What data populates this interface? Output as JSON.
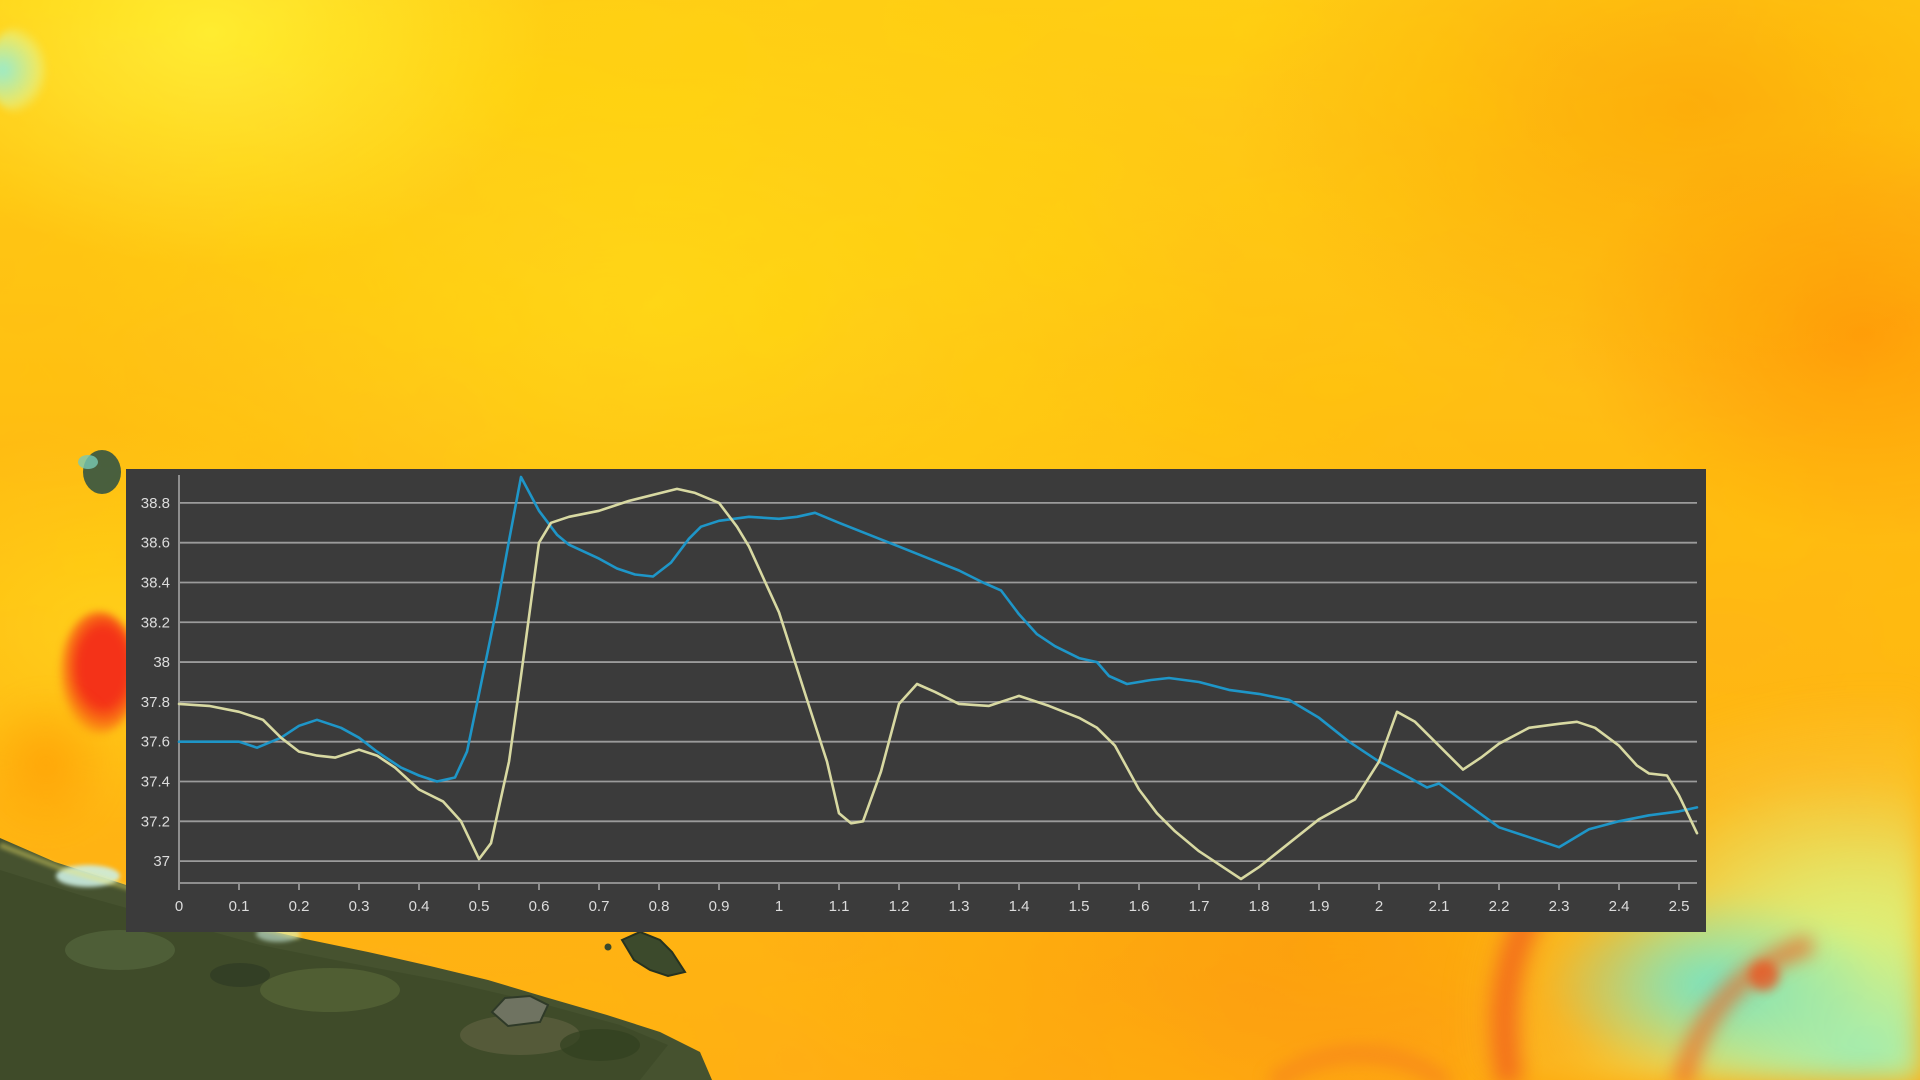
{
  "panel": {
    "background": "#3B3B3B",
    "gridline_color": "#9B9B9B",
    "axis_color": "#8E8E8E",
    "tick_label_color": "#DCDCDC"
  },
  "background_colors": {
    "warm_base": "#FFB71C",
    "warm_light": "#FFE14A",
    "warm_deep": "#FA8700",
    "hot_red": "#F43218",
    "cool_aqua": "#70E2C8",
    "cool_green": "#E5F576",
    "land_green": "#46522F",
    "coast_cyan": "#CDEFE2"
  },
  "chart_data": {
    "type": "line",
    "title": "",
    "xlabel": "",
    "ylabel": "",
    "grid": true,
    "legend_position": "none",
    "xlim": [
      0,
      2.53
    ],
    "ylim": [
      36.89,
      38.94
    ],
    "x_ticks": [
      0,
      0.1,
      0.2,
      0.3,
      0.4,
      0.5,
      0.6,
      0.7,
      0.8,
      0.9,
      1,
      1.1,
      1.2,
      1.3,
      1.4,
      1.5,
      1.6,
      1.7,
      1.8,
      1.9,
      2,
      2.1,
      2.2,
      2.3,
      2.4,
      2.5
    ],
    "x_tick_labels": [
      "0",
      "0.1",
      "0.2",
      "0.3",
      "0.4",
      "0.5",
      "0.6",
      "0.7",
      "0.8",
      "0.9",
      "1",
      "1.1",
      "1.2",
      "1.3",
      "1.4",
      "1.5",
      "1.6",
      "1.7",
      "1.8",
      "1.9",
      "2",
      "2.1",
      "2.2",
      "2.3",
      "2.4",
      "2.5"
    ],
    "y_ticks": [
      38.8,
      38.6,
      38.4,
      38.2,
      38,
      37.8,
      37.6,
      37.4,
      37.2,
      37
    ],
    "y_tick_labels": [
      "38.8",
      "38.6",
      "38.4",
      "38.2",
      "38",
      "37.8",
      "37.6",
      "37.4",
      "37.2",
      "37"
    ],
    "series": [
      {
        "name": "blue-line",
        "color": "#1E96C8",
        "points": [
          [
            0,
            37.6
          ],
          [
            0.05,
            37.6
          ],
          [
            0.1,
            37.6
          ],
          [
            0.13,
            37.57
          ],
          [
            0.17,
            37.62
          ],
          [
            0.2,
            37.68
          ],
          [
            0.23,
            37.71
          ],
          [
            0.27,
            37.67
          ],
          [
            0.3,
            37.62
          ],
          [
            0.33,
            37.55
          ],
          [
            0.37,
            37.47
          ],
          [
            0.4,
            37.43
          ],
          [
            0.43,
            37.4
          ],
          [
            0.46,
            37.42
          ],
          [
            0.48,
            37.55
          ],
          [
            0.5,
            37.84
          ],
          [
            0.53,
            38.28
          ],
          [
            0.55,
            38.61
          ],
          [
            0.57,
            38.93
          ],
          [
            0.6,
            38.76
          ],
          [
            0.63,
            38.64
          ],
          [
            0.65,
            38.59
          ],
          [
            0.7,
            38.52
          ],
          [
            0.73,
            38.47
          ],
          [
            0.76,
            38.44
          ],
          [
            0.79,
            38.43
          ],
          [
            0.82,
            38.5
          ],
          [
            0.85,
            38.62
          ],
          [
            0.87,
            38.68
          ],
          [
            0.9,
            38.71
          ],
          [
            0.95,
            38.73
          ],
          [
            1.0,
            38.72
          ],
          [
            1.03,
            38.73
          ],
          [
            1.06,
            38.75
          ],
          [
            1.1,
            38.7
          ],
          [
            1.15,
            38.64
          ],
          [
            1.2,
            38.58
          ],
          [
            1.25,
            38.52
          ],
          [
            1.3,
            38.46
          ],
          [
            1.34,
            38.4
          ],
          [
            1.37,
            38.36
          ],
          [
            1.4,
            38.24
          ],
          [
            1.43,
            38.14
          ],
          [
            1.46,
            38.08
          ],
          [
            1.5,
            38.02
          ],
          [
            1.53,
            38.0
          ],
          [
            1.55,
            37.93
          ],
          [
            1.58,
            37.89
          ],
          [
            1.62,
            37.91
          ],
          [
            1.65,
            37.92
          ],
          [
            1.7,
            37.9
          ],
          [
            1.75,
            37.86
          ],
          [
            1.8,
            37.84
          ],
          [
            1.85,
            37.81
          ],
          [
            1.9,
            37.72
          ],
          [
            1.95,
            37.6
          ],
          [
            2.0,
            37.5
          ],
          [
            2.05,
            37.42
          ],
          [
            2.08,
            37.37
          ],
          [
            2.1,
            37.39
          ],
          [
            2.15,
            37.28
          ],
          [
            2.2,
            37.17
          ],
          [
            2.25,
            37.12
          ],
          [
            2.3,
            37.07
          ],
          [
            2.35,
            37.16
          ],
          [
            2.4,
            37.2
          ],
          [
            2.45,
            37.23
          ],
          [
            2.5,
            37.25
          ],
          [
            2.53,
            37.27
          ]
        ]
      },
      {
        "name": "khaki-line",
        "color": "#D8D9A2",
        "points": [
          [
            0,
            37.79
          ],
          [
            0.05,
            37.78
          ],
          [
            0.1,
            37.75
          ],
          [
            0.14,
            37.71
          ],
          [
            0.17,
            37.62
          ],
          [
            0.2,
            37.55
          ],
          [
            0.23,
            37.53
          ],
          [
            0.26,
            37.52
          ],
          [
            0.3,
            37.56
          ],
          [
            0.33,
            37.53
          ],
          [
            0.36,
            37.47
          ],
          [
            0.4,
            37.36
          ],
          [
            0.44,
            37.3
          ],
          [
            0.47,
            37.2
          ],
          [
            0.5,
            37.01
          ],
          [
            0.52,
            37.09
          ],
          [
            0.55,
            37.5
          ],
          [
            0.57,
            37.93
          ],
          [
            0.6,
            38.6
          ],
          [
            0.62,
            38.7
          ],
          [
            0.65,
            38.73
          ],
          [
            0.7,
            38.76
          ],
          [
            0.75,
            38.81
          ],
          [
            0.83,
            38.87
          ],
          [
            0.86,
            38.85
          ],
          [
            0.9,
            38.8
          ],
          [
            0.93,
            38.68
          ],
          [
            0.95,
            38.58
          ],
          [
            1.0,
            38.25
          ],
          [
            1.05,
            37.78
          ],
          [
            1.08,
            37.5
          ],
          [
            1.1,
            37.24
          ],
          [
            1.12,
            37.19
          ],
          [
            1.14,
            37.2
          ],
          [
            1.17,
            37.45
          ],
          [
            1.2,
            37.79
          ],
          [
            1.23,
            37.89
          ],
          [
            1.26,
            37.85
          ],
          [
            1.3,
            37.79
          ],
          [
            1.35,
            37.78
          ],
          [
            1.4,
            37.83
          ],
          [
            1.45,
            37.78
          ],
          [
            1.5,
            37.72
          ],
          [
            1.53,
            37.67
          ],
          [
            1.56,
            37.58
          ],
          [
            1.6,
            37.36
          ],
          [
            1.63,
            37.24
          ],
          [
            1.66,
            37.15
          ],
          [
            1.7,
            37.05
          ],
          [
            1.74,
            36.97
          ],
          [
            1.77,
            36.91
          ],
          [
            1.8,
            36.97
          ],
          [
            1.85,
            37.09
          ],
          [
            1.9,
            37.21
          ],
          [
            1.93,
            37.26
          ],
          [
            1.96,
            37.31
          ],
          [
            2.0,
            37.5
          ],
          [
            2.03,
            37.75
          ],
          [
            2.06,
            37.7
          ],
          [
            2.1,
            37.58
          ],
          [
            2.14,
            37.46
          ],
          [
            2.17,
            37.52
          ],
          [
            2.2,
            37.59
          ],
          [
            2.25,
            37.67
          ],
          [
            2.3,
            37.69
          ],
          [
            2.33,
            37.7
          ],
          [
            2.36,
            37.67
          ],
          [
            2.4,
            37.58
          ],
          [
            2.43,
            37.48
          ],
          [
            2.45,
            37.44
          ],
          [
            2.48,
            37.43
          ],
          [
            2.5,
            37.33
          ],
          [
            2.53,
            37.14
          ]
        ]
      }
    ]
  }
}
